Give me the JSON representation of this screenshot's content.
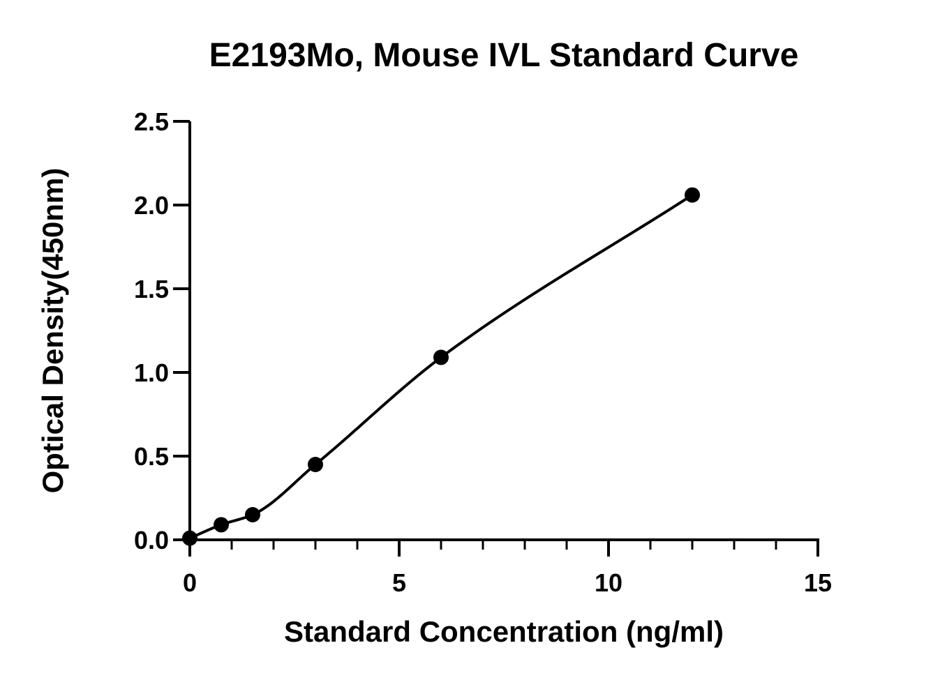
{
  "chart_data": {
    "type": "scatter",
    "title": "E2193Mo, Mouse IVL Standard Curve",
    "xlabel": "Standard Concentration (ng/ml)",
    "ylabel": "Optical Density(450nm)",
    "xlim": [
      0,
      15
    ],
    "ylim": [
      0,
      2.5
    ],
    "x_ticks": [
      0,
      5,
      10,
      15
    ],
    "x_tick_labels": [
      "0",
      "5",
      "10",
      "15"
    ],
    "x_minor_step": 1,
    "y_ticks": [
      0,
      0.5,
      1.0,
      1.5,
      2.0,
      2.5
    ],
    "y_tick_labels": [
      "0.0",
      "0.5",
      "1.0",
      "1.5",
      "2.0",
      "2.5"
    ],
    "grid": false,
    "fit_curve": true,
    "series": [
      {
        "x": [
          0,
          0.75,
          1.5,
          3,
          6,
          12
        ],
        "y": [
          0.01,
          0.09,
          0.15,
          0.45,
          1.09,
          2.06
        ]
      }
    ],
    "colors": {
      "marker": "#000000",
      "line": "#000000",
      "axis": "#000000"
    }
  }
}
